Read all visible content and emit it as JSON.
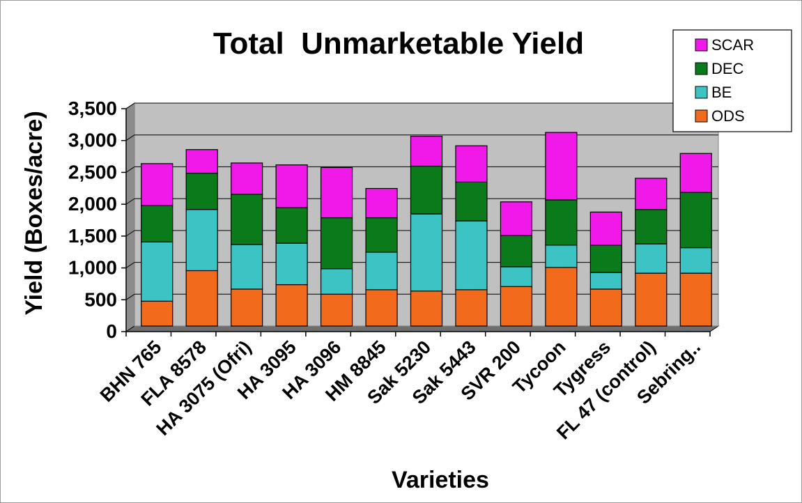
{
  "chart_data": {
    "type": "bar",
    "stacked": true,
    "title": "Total  Unmarketable Yield",
    "xlabel": "Varieties",
    "ylabel": "Yield (Boxes/acre)",
    "ylim": [
      0,
      3500
    ],
    "yticks": [
      0,
      500,
      1000,
      1500,
      2000,
      2500,
      3000,
      3500
    ],
    "ytick_labels": [
      "0",
      "500",
      "1,000",
      "1,500",
      "2,000",
      "2,500",
      "3,000",
      "3,500"
    ],
    "grid": true,
    "legend_position": "top-right",
    "categories": [
      "BHN 765",
      "FLA 8578",
      "HA 3075 (Ofri)",
      "HA 3095",
      "HA 3096",
      "HM 8845",
      "Sak 5230",
      "Sak 5443",
      "SVR 200",
      "Tycoon",
      "Tygress",
      "FL 47 (control)",
      "Sebring.."
    ],
    "series": [
      {
        "name": "ODS",
        "color": "#f26b1d",
        "values": [
          390,
          870,
          580,
          650,
          500,
          570,
          550,
          570,
          620,
          920,
          580,
          830,
          830
        ]
      },
      {
        "name": "BE",
        "color": "#3cc4c4",
        "values": [
          930,
          960,
          700,
          650,
          400,
          590,
          1210,
          1080,
          310,
          350,
          260,
          460,
          400
        ]
      },
      {
        "name": "DEC",
        "color": "#0b7a1b",
        "values": [
          570,
          570,
          790,
          560,
          800,
          540,
          750,
          610,
          490,
          710,
          430,
          540,
          870
        ]
      },
      {
        "name": "SCAR",
        "color": "#f019ea",
        "values": [
          660,
          370,
          490,
          670,
          790,
          460,
          470,
          570,
          530,
          1060,
          520,
          490,
          610
        ]
      }
    ],
    "colors": {
      "plot_background": "#c0c0c0",
      "bar_outline": "#000000",
      "gridline": "#000000"
    }
  }
}
